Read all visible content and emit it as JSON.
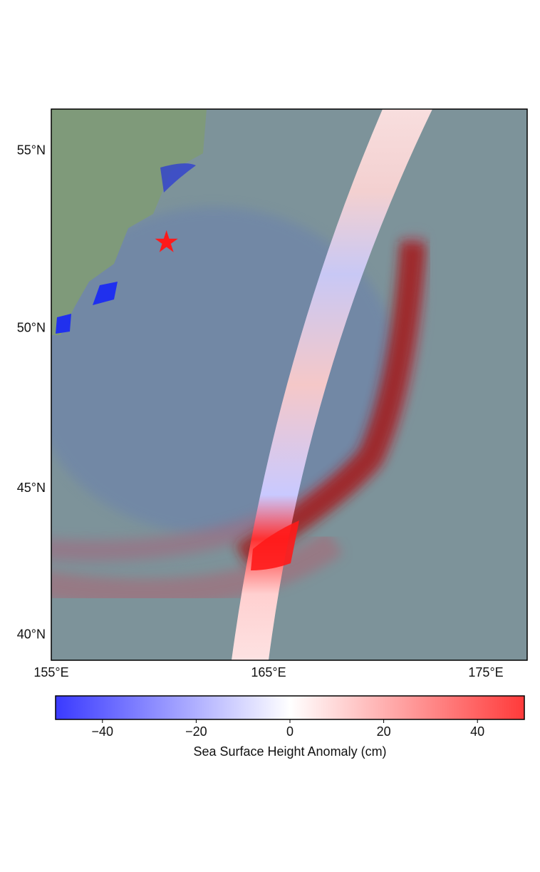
{
  "chart_data": {
    "type": "map",
    "xlim": [
      155,
      176.9
    ],
    "ylim": [
      39.1,
      56.1
    ],
    "xticks": [
      {
        "value": 155,
        "label": "155°E"
      },
      {
        "value": 165,
        "label": "165°E"
      },
      {
        "value": 175,
        "label": "175°E"
      }
    ],
    "yticks": [
      {
        "value": 40,
        "label": "40°N"
      },
      {
        "value": 45,
        "label": "45°N"
      },
      {
        "value": 50,
        "label": "50°N"
      },
      {
        "value": 55,
        "label": "55°N"
      }
    ],
    "epicenter": {
      "lon": 160.3,
      "lat": 52.5,
      "color": "#ff1a1a"
    },
    "colorbar": {
      "label": "Sea Surface Height Anomaly (cm)",
      "lim": [
        -50,
        50
      ],
      "ticks": [
        {
          "value": -40,
          "label": "−40"
        },
        {
          "value": -20,
          "label": "−20"
        },
        0,
        20,
        40
      ]
    }
  }
}
